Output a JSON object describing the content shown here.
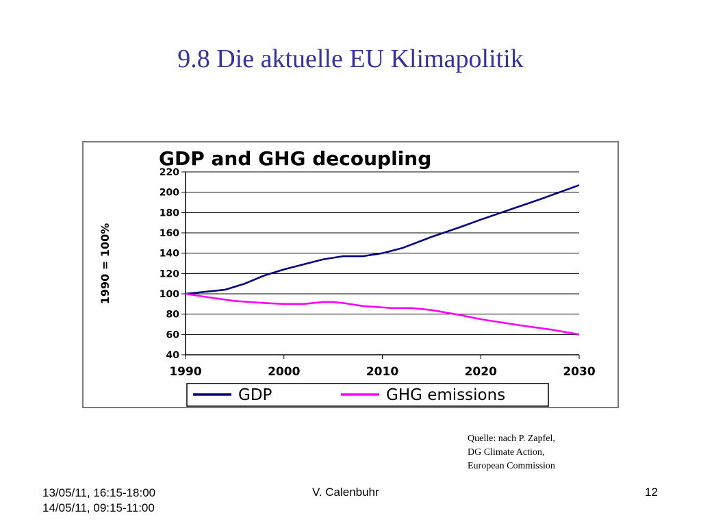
{
  "slide": {
    "title": "9.8 Die aktuelle EU Klimapolitik",
    "source_lines": [
      "Quelle: nach P. Zapfel,",
      "DG Climate Action,",
      "European Commission"
    ],
    "footer": {
      "date_lines": [
        "13/05/11, 16:15-18:00",
        "14/05/11, 09:15-11:00"
      ],
      "author": "V. Calenbuhr",
      "page": "12"
    }
  },
  "chart_data": {
    "type": "line",
    "title": "GDP and GHG decoupling",
    "ylabel": "1990 = 100%",
    "xlabel": "",
    "xlim": [
      1990,
      2030
    ],
    "ylim": [
      40,
      220
    ],
    "x_ticks": [
      "1990",
      "2000",
      "2010",
      "2020",
      "2030"
    ],
    "y_ticks": [
      "220",
      "200",
      "180",
      "160",
      "140",
      "120",
      "100",
      "80",
      "60",
      "40"
    ],
    "grid": "horizontal",
    "legend_position": "bottom",
    "series": [
      {
        "name": "GDP",
        "color": "#000080",
        "points": [
          [
            1990,
            100
          ],
          [
            1994,
            104
          ],
          [
            1996,
            110
          ],
          [
            1998,
            118
          ],
          [
            2000,
            124
          ],
          [
            2002,
            129
          ],
          [
            2004,
            134
          ],
          [
            2006,
            137
          ],
          [
            2008,
            137
          ],
          [
            2010,
            140
          ],
          [
            2012,
            145
          ],
          [
            2015,
            156
          ],
          [
            2018,
            166
          ],
          [
            2020,
            173
          ],
          [
            2023,
            183
          ],
          [
            2026,
            193
          ],
          [
            2030,
            207
          ]
        ]
      },
      {
        "name": "GHG emissions",
        "color": "#ff00ff",
        "points": [
          [
            1990,
            100
          ],
          [
            1992,
            97
          ],
          [
            1995,
            93
          ],
          [
            1998,
            91
          ],
          [
            2000,
            90
          ],
          [
            2002,
            90
          ],
          [
            2004,
            92
          ],
          [
            2005,
            92
          ],
          [
            2006,
            91
          ],
          [
            2008,
            88
          ],
          [
            2011,
            86
          ],
          [
            2013,
            86
          ],
          [
            2015,
            84
          ],
          [
            2018,
            79
          ],
          [
            2020,
            75
          ],
          [
            2024,
            69
          ],
          [
            2027,
            65
          ],
          [
            2030,
            60
          ]
        ]
      }
    ]
  }
}
